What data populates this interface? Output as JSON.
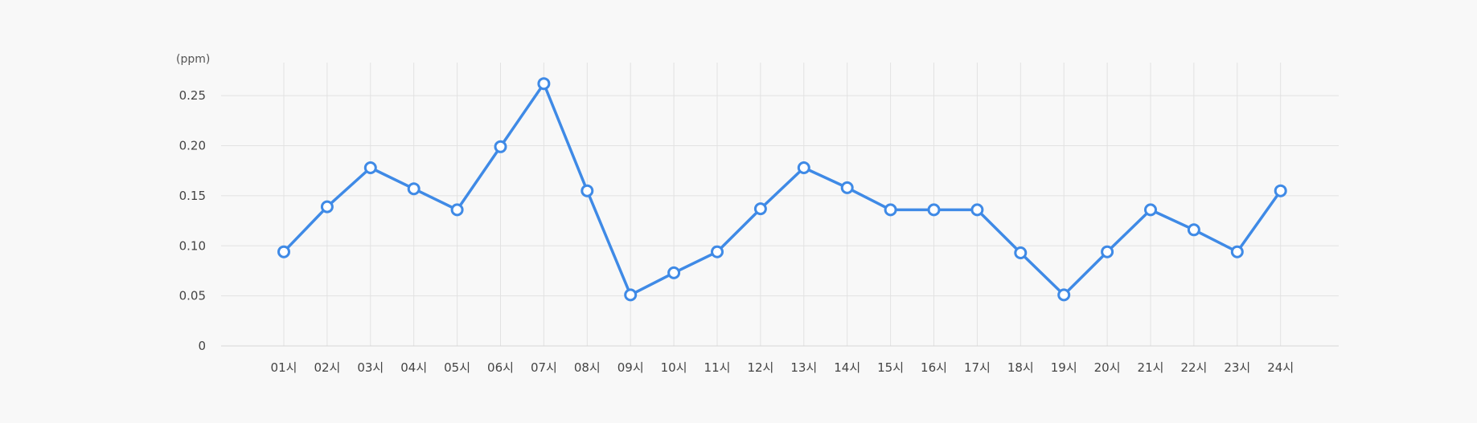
{
  "chart_data": {
    "type": "line",
    "title": "",
    "xlabel": "",
    "ylabel": "",
    "y_unit_label": "(ppm)",
    "categories": [
      "01시",
      "02시",
      "03시",
      "04시",
      "05시",
      "06시",
      "07시",
      "08시",
      "09시",
      "10시",
      "11시",
      "12시",
      "13시",
      "14시",
      "15시",
      "16시",
      "17시",
      "18시",
      "19시",
      "20시",
      "21시",
      "22시",
      "23시",
      "24시"
    ],
    "y_ticks": [
      0,
      0.05,
      0.1,
      0.15,
      0.2,
      0.25
    ],
    "y_tick_labels": [
      "0",
      "0.05",
      "0.10",
      "0.15",
      "0.20",
      "0.25"
    ],
    "ylim": [
      0,
      0.283
    ],
    "grid": true,
    "series": [
      {
        "values": [
          0.094,
          0.139,
          0.178,
          0.157,
          0.136,
          0.199,
          0.262,
          0.155,
          0.051,
          0.073,
          0.094,
          0.137,
          0.178,
          0.158,
          0.136,
          0.136,
          0.136,
          0.093,
          0.051,
          0.094,
          0.136,
          0.116,
          0.094,
          0.155
        ],
        "color": "#3f8ae6"
      }
    ]
  }
}
